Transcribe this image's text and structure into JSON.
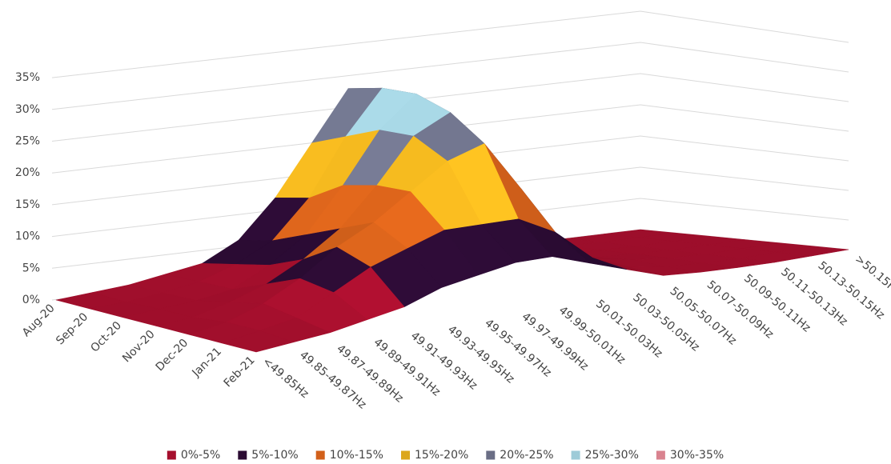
{
  "chart_data": {
    "type": "surface3d",
    "categories": [
      "<49.85Hz",
      "49.85-49.87Hz",
      "49.87-49.89Hz",
      "49.89-49.91Hz",
      "49.91-49.93Hz",
      "49.93-49.95Hz",
      "49.95-49.97Hz",
      "49.97-49.99Hz",
      "49.99-50.01Hz",
      "50.01-50.03Hz",
      "50.03-50.05Hz",
      "50.05-50.07Hz",
      "50.07-50.09Hz",
      "50.09-50.11Hz",
      "50.11-50.13Hz",
      "50.13-50.15Hz",
      ">50.15Hz"
    ],
    "months": [
      "Aug-20",
      "Sep-20",
      "Oct-20",
      "Nov-20",
      "Dec-20",
      "Jan-21",
      "Feb-21"
    ],
    "values": [
      [
        0,
        0.5,
        1,
        2,
        3,
        6,
        12,
        20,
        28,
        20,
        8,
        2,
        0.5,
        0.2,
        0,
        0,
        0
      ],
      [
        0,
        0.3,
        1,
        2,
        4,
        7,
        13,
        22,
        29,
        21,
        9,
        2,
        0.5,
        0.2,
        0,
        0,
        0
      ],
      [
        0,
        0.5,
        1,
        2,
        5,
        9,
        16,
        24,
        29,
        18,
        7,
        2,
        0.5,
        0.2,
        0,
        0,
        0
      ],
      [
        0,
        0.5,
        2,
        4,
        7,
        11,
        17,
        24,
        27,
        16,
        6,
        2,
        0.6,
        0.3,
        0,
        0,
        0
      ],
      [
        0,
        1,
        3,
        6,
        10,
        13,
        17,
        21,
        23,
        15,
        6,
        2,
        1,
        0.3,
        0,
        0,
        0
      ],
      [
        0,
        1,
        2,
        5,
        8,
        10,
        12,
        12,
        12,
        9,
        4,
        1.5,
        0.6,
        0.2,
        0,
        0,
        0
      ],
      [
        0,
        0.5,
        1,
        2,
        3,
        5,
        6,
        7,
        7,
        5,
        3,
        1,
        0.5,
        0.2,
        0,
        0,
        0
      ]
    ],
    "ylim": [
      0,
      35
    ],
    "yticks": [
      {
        "value": 0,
        "label": "0%"
      },
      {
        "value": 5,
        "label": "5%"
      },
      {
        "value": 10,
        "label": "10%"
      },
      {
        "value": 15,
        "label": "15%"
      },
      {
        "value": 20,
        "label": "20%"
      },
      {
        "value": 25,
        "label": "25%"
      },
      {
        "value": 30,
        "label": "30%"
      },
      {
        "value": 35,
        "label": "35%"
      }
    ],
    "grid": true,
    "color_bands": [
      {
        "name": "0%-5%",
        "color": "#a50f2d"
      },
      {
        "name": "5%-10%",
        "color": "#2b0b33"
      },
      {
        "name": "10%-15%",
        "color": "#d2601a"
      },
      {
        "name": "15%-20%",
        "color": "#dca71c"
      },
      {
        "name": "20%-25%",
        "color": "#6a6e85"
      },
      {
        "name": "25%-30%",
        "color": "#9ecbd8"
      },
      {
        "name": "30%-35%",
        "color": "#d9838f"
      }
    ]
  }
}
